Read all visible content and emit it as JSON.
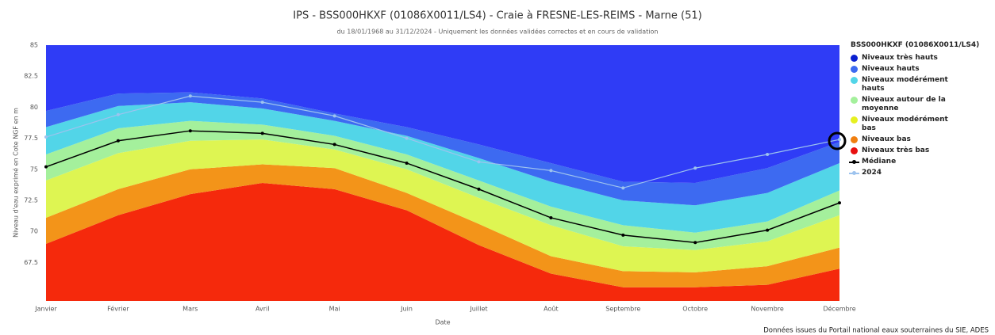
{
  "chart_data": {
    "type": "area",
    "title": "IPS - BSS000HKXF (01086X0011/LS4) - Craie à FRESNE-LES-REIMS - Marne (51)",
    "subtitle": "du 18/01/1968 au 31/12/2024 - Uniquement les données validées correctes et en cours de validation",
    "x_label": "Date",
    "y_label": "Niveau d'eau exprimé en Cote NGF en m",
    "legend_title": "BSS000HKXF (01086X0011/LS4)",
    "legend_position": "right",
    "source": "Données issues du Portail national eaux souterraines du SIE, ADES",
    "categories": [
      "Janvier",
      "Février",
      "Mars",
      "Avril",
      "Mai",
      "Juin",
      "Juillet",
      "Août",
      "Septembre",
      "Octobre",
      "Novembre",
      "Décembre"
    ],
    "ylim": [
      64.4,
      85
    ],
    "yticks": [
      67.5,
      70,
      72.5,
      75,
      77.5,
      80,
      82.5,
      85
    ],
    "grid": false,
    "series": [
      {
        "name": "Niveaux très hauts",
        "type": "area",
        "color": "#2f3cf6",
        "marker_color": "#0a1fd0",
        "values": [
          85,
          85,
          85,
          85,
          85,
          85,
          85,
          85,
          85,
          85,
          85,
          85
        ]
      },
      {
        "name": "Niveaux hauts",
        "type": "area",
        "color": "#3d6af1",
        "marker_color": "#3d6af1",
        "values": [
          79.7,
          81.1,
          81.2,
          80.7,
          79.5,
          78.4,
          77.0,
          75.5,
          74.0,
          73.9,
          75.1,
          77.2
        ]
      },
      {
        "name": "Niveaux modérément hauts",
        "type": "area",
        "color": "#52d5e8",
        "marker_color": "#52d5e8",
        "values": [
          78.4,
          80.1,
          80.4,
          79.9,
          78.9,
          77.7,
          75.9,
          74.0,
          72.5,
          72.1,
          73.1,
          75.5
        ]
      },
      {
        "name": "Niveaux autour de la moyenne",
        "type": "area",
        "color": "#a4f09c",
        "marker_color": "#a4f09c",
        "values": [
          76.2,
          78.3,
          78.9,
          78.6,
          77.7,
          76.2,
          74.1,
          72.0,
          70.5,
          69.9,
          70.8,
          73.3
        ]
      },
      {
        "name": "Niveaux modérément bas",
        "type": "area",
        "color": "#def552",
        "marker_color": "#e6f020",
        "values": [
          74.1,
          76.3,
          77.3,
          77.4,
          76.6,
          75.0,
          72.7,
          70.5,
          68.8,
          68.5,
          69.2,
          71.3
        ]
      },
      {
        "name": "Niveaux bas",
        "type": "area",
        "color": "#f39419",
        "marker_color": "#f07f10",
        "values": [
          71.1,
          73.4,
          75.0,
          75.4,
          75.1,
          73.1,
          70.6,
          68.0,
          66.8,
          66.7,
          67.2,
          68.7
        ]
      },
      {
        "name": "Niveaux très bas",
        "type": "area",
        "color": "#f5290c",
        "marker_color": "#e81010",
        "values": [
          69.0,
          71.3,
          73.0,
          73.9,
          73.4,
          71.7,
          68.9,
          66.6,
          65.5,
          65.5,
          65.7,
          67.0
        ]
      },
      {
        "name": "Médiane",
        "type": "line",
        "color": "#000000",
        "marker_color": "#000000",
        "values": [
          75.2,
          77.3,
          78.1,
          77.9,
          77.0,
          75.5,
          73.4,
          71.1,
          69.7,
          69.1,
          70.1,
          72.3
        ]
      },
      {
        "name": "2024",
        "type": "line",
        "color": "#9dc3ee",
        "marker_color": "#9dc3ee",
        "values": [
          77.6,
          79.4,
          80.9,
          80.4,
          79.3,
          77.5,
          75.6,
          74.9,
          73.5,
          75.1,
          76.2,
          77.4
        ]
      }
    ]
  }
}
